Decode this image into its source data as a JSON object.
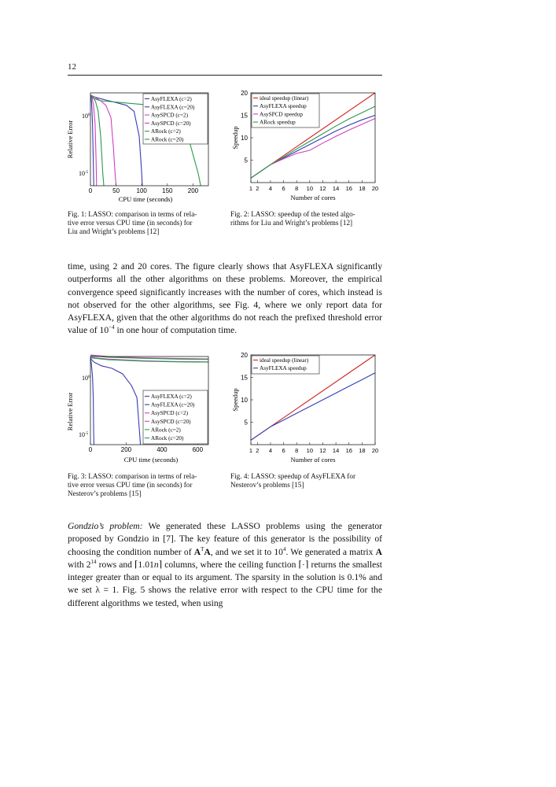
{
  "page_number": "12",
  "fig1": {
    "caption": "Fig. 1: LASSO: comparison in terms of relative error versus CPU time (in seconds) for Liu and Wright's problems [12]",
    "caption_lines": [
      "Fig. 1: LASSO: comparison in terms of rela-",
      "tive error versus CPU time (in seconds) for",
      "Liu and Wright’s problems [12]"
    ],
    "xlabel": "CPU time (seconds)",
    "ylabel": "Relative Error",
    "xticks": [
      "0",
      "50",
      "100",
      "150",
      "200"
    ],
    "yticks": [
      "10^0",
      "10^-5"
    ],
    "legend": [
      "AsyFLEXA (c=2)",
      "AsyFLEXA (c=20)",
      "AsySPCD (c=2)",
      "AsySPCD (c=20)",
      "ARock (c=2)",
      "ARock (c=20)"
    ]
  },
  "fig2": {
    "caption": "Fig. 2: LASSO: speedup of the tested algorithms for Liu and Wright's problems [12]",
    "caption_lines": [
      "Fig. 2: LASSO: speedup of the tested algo-",
      "rithms for Liu and Wright’s problems [12]"
    ],
    "xlabel": "Number of cores",
    "ylabel": "Speedup",
    "legend": [
      "ideal speedup (linear)",
      "AsyFLEXA speedup",
      "AsySPCD speedup",
      "ARock speedup"
    ]
  },
  "fig3": {
    "caption": "Fig. 3: LASSO: comparison in terms of relative error versus CPU time (in seconds) for Nesterov's problems [15]",
    "caption_lines": [
      "Fig. 3: LASSO: comparison in terms of rela-",
      "tive error versus CPU time (in seconds) for",
      "Nesterov’s problems [15]"
    ],
    "xlabel": "CPU time (seconds)",
    "ylabel": "Relative Error",
    "xticks": [
      "0",
      "200",
      "400",
      "600"
    ],
    "yticks": [
      "10^0",
      "10^-5"
    ],
    "legend": [
      "AsyFLEXA (c=2)",
      "AsyFLEXA (c=20)",
      "AsySPCD (c=2)",
      "AsySPCD (c=20)",
      "ARock (c=2)",
      "ARock (c=20)"
    ]
  },
  "fig4": {
    "caption": "Fig. 4: LASSO: speedup of AsyFLEXA for Nesterov's problems [15]",
    "caption_lines": [
      "Fig. 4: LASSO: speedup of AsyFLEXA for",
      "Nesterov’s problems [15]"
    ],
    "xlabel": "Number of cores",
    "ylabel": "Speedup",
    "legend": [
      "ideal speedup (linear)",
      "AsyFLEXA speedup"
    ]
  },
  "para1": {
    "text1": "time, using 2 and 20 cores. The figure clearly shows that AsyFLEXA significantly outperforms all the other algorithms on these problems. Moreover, the empirical convergence speed significantly increases with the number of cores, which instead is not observed for the other algorithms, see Fig. 4, where we only report data for AsyFLEXA, given that the other algorithms do not reach the prefixed threshold error value of 10",
    "exp": "−4",
    "text2": " in one hour of computation time."
  },
  "para2": {
    "title": "Gondzio’s problem:",
    "t1": " We generated these LASSO problems using the generator proposed by Gondzio in [7]. The key feature of this generator is the possibility of choosing the condition number of ",
    "m1": "A",
    "m1sup": "T",
    "m2": "A",
    "t2": ", and we set it to 10",
    "e1": "4",
    "t3": ". We generated a matrix ",
    "m3": "A",
    "t4": " with 2",
    "e2": "14",
    "t5": " rows and ⌈1.01",
    "m4": "n",
    "t6": "⌉ columns, where the ceiling function ⌈·⌉ returns the smallest integer greater than or equal to its argument. The sparsity in the solution is 0.1% and we set λ = 1. Fig. 5 shows the relative error with respect to the CPU time for the different algorithms we tested, when using"
  },
  "chart_data": [
    {
      "type": "line",
      "title": "",
      "xlabel": "CPU time (seconds)",
      "ylabel": "Relative Error",
      "yscale": "log",
      "xlim": [
        0,
        230
      ],
      "ylim": [
        1e-07,
        3
      ],
      "series": [
        {
          "name": "AsyFLEXA (c=2)",
          "color": "#3a3ab0",
          "x": [
            0,
            10,
            30,
            50,
            70,
            85,
            95,
            100,
            101
          ],
          "y": [
            2,
            1.3,
            0.8,
            0.5,
            0.3,
            0.1,
            0.001,
            1e-06,
            1e-07
          ]
        },
        {
          "name": "AsyFLEXA (c=20)",
          "color": "#3a3ab0",
          "x": [
            0,
            1,
            2,
            3,
            4,
            5,
            6,
            6.5
          ],
          "y": [
            2,
            1.3,
            0.6,
            0.1,
            0.01,
            0.0001,
            1e-06,
            1e-07
          ]
        },
        {
          "name": "AsySPCD (c=2)",
          "color": "#d040c0",
          "x": [
            0,
            10,
            20,
            30,
            40,
            45,
            48,
            50
          ],
          "y": [
            2,
            1.2,
            0.7,
            0.3,
            0.03,
            0.0001,
            1e-06,
            1e-07
          ]
        },
        {
          "name": "AsySPCD (c=20)",
          "color": "#d040c0",
          "x": [
            0,
            3,
            6,
            9,
            11,
            12
          ],
          "y": [
            2,
            1.2,
            0.3,
            0.01,
            1e-05,
            1e-07
          ]
        },
        {
          "name": "ARock (c=2)",
          "color": "#2a9a4a",
          "x": [
            0,
            5,
            10,
            15,
            20,
            24,
            26
          ],
          "y": [
            2,
            1.3,
            0.6,
            0.1,
            0.001,
            1e-06,
            1e-07
          ]
        },
        {
          "name": "ARock (c=20)",
          "color": "#2a9a4a",
          "x": [
            0,
            5,
            20,
            60,
            120,
            160,
            190,
            210,
            215
          ],
          "y": [
            2,
            1.1,
            0.7,
            0.5,
            0.3,
            0.1,
            0.001,
            1e-06,
            1e-07
          ]
        }
      ]
    },
    {
      "type": "line",
      "xlabel": "Number of cores",
      "ylabel": "Speedup",
      "x_ticks": [
        1,
        2,
        4,
        6,
        8,
        10,
        12,
        14,
        16,
        18,
        20
      ],
      "y_ticks": [
        5,
        10,
        15,
        20
      ],
      "xlim": [
        1,
        20
      ],
      "ylim": [
        0,
        20
      ],
      "series": [
        {
          "name": "ideal speedup (linear)",
          "color": "#d02020",
          "x": [
            1,
            20
          ],
          "y": [
            1,
            20
          ]
        },
        {
          "name": "AsyFLEXA speedup",
          "color": "#3040b0",
          "x": [
            1,
            2,
            4,
            6,
            8,
            10,
            12,
            14,
            16,
            18,
            20
          ],
          "y": [
            1,
            2,
            4,
            5.5,
            7,
            8.5,
            10,
            11.5,
            12.8,
            14,
            15
          ]
        },
        {
          "name": "AsySPCD speedup",
          "color": "#d040c0",
          "x": [
            1,
            2,
            4,
            6,
            8,
            10,
            12,
            14,
            16,
            18,
            20
          ],
          "y": [
            1,
            2,
            4,
            5.3,
            6.5,
            7.2,
            8.8,
            10.3,
            11.7,
            13,
            14.3
          ]
        },
        {
          "name": "ARock speedup",
          "color": "#2a9a4a",
          "x": [
            1,
            2,
            4,
            6,
            8,
            10,
            12,
            14,
            16,
            18,
            20
          ],
          "y": [
            1,
            2,
            4,
            5.7,
            7.5,
            9.2,
            10.9,
            12.6,
            14.2,
            15.6,
            17
          ]
        }
      ]
    },
    {
      "type": "line",
      "xlabel": "CPU time (seconds)",
      "ylabel": "Relative Error",
      "yscale": "log",
      "xlim": [
        0,
        660
      ],
      "ylim": [
        1e-07,
        3
      ],
      "series": [
        {
          "name": "AsyFLEXA (c=2)",
          "color": "#3a3ab0",
          "x": [
            0,
            20,
            60,
            120,
            180,
            230,
            260,
            275,
            280
          ],
          "y": [
            2,
            1,
            0.5,
            0.3,
            0.1,
            0.01,
            0.001,
            1e-06,
            1e-07
          ]
        },
        {
          "name": "AsyFLEXA (c=20)",
          "color": "#3a3ab0",
          "x": [
            0,
            5,
            12,
            16,
            18,
            20
          ],
          "y": [
            2,
            0.8,
            0.05,
            0.001,
            1e-06,
            1e-07
          ]
        },
        {
          "name": "AsySPCD (c=2)",
          "color": "#d040c0",
          "x": [
            0,
            100,
            300,
            500,
            660
          ],
          "y": [
            4,
            3,
            2.3,
            2,
            1.9
          ]
        },
        {
          "name": "AsySPCD (c=20)",
          "color": "#d040c0",
          "x": [
            0,
            100,
            300,
            500,
            660
          ],
          "y": [
            2.5,
            1.8,
            1.3,
            1.1,
            1.05
          ]
        },
        {
          "name": "ARock (c=2)",
          "color": "#2a9a4a",
          "x": [
            0,
            100,
            300,
            500,
            660
          ],
          "y": [
            3.5,
            2.6,
            2.1,
            1.8,
            1.7
          ]
        },
        {
          "name": "ARock (c=20)",
          "color": "#2a9a4a",
          "x": [
            0,
            100,
            300,
            500,
            660
          ],
          "y": [
            2.3,
            1.6,
            1.2,
            1.05,
            1
          ]
        }
      ]
    },
    {
      "type": "line",
      "xlabel": "Number of cores",
      "ylabel": "Speedup",
      "x_ticks": [
        1,
        2,
        4,
        6,
        8,
        10,
        12,
        14,
        16,
        18,
        20
      ],
      "y_ticks": [
        5,
        10,
        15,
        20
      ],
      "xlim": [
        1,
        20
      ],
      "ylim": [
        0,
        20
      ],
      "series": [
        {
          "name": "ideal speedup (linear)",
          "color": "#d02020",
          "x": [
            1,
            20
          ],
          "y": [
            1,
            20
          ]
        },
        {
          "name": "AsyFLEXA speedup",
          "color": "#3040b0",
          "x": [
            1,
            2,
            4,
            6,
            8,
            10,
            12,
            14,
            16,
            18,
            20
          ],
          "y": [
            1,
            2,
            4,
            5.5,
            7,
            8.5,
            10,
            11.5,
            13,
            14.5,
            16
          ]
        }
      ]
    }
  ]
}
